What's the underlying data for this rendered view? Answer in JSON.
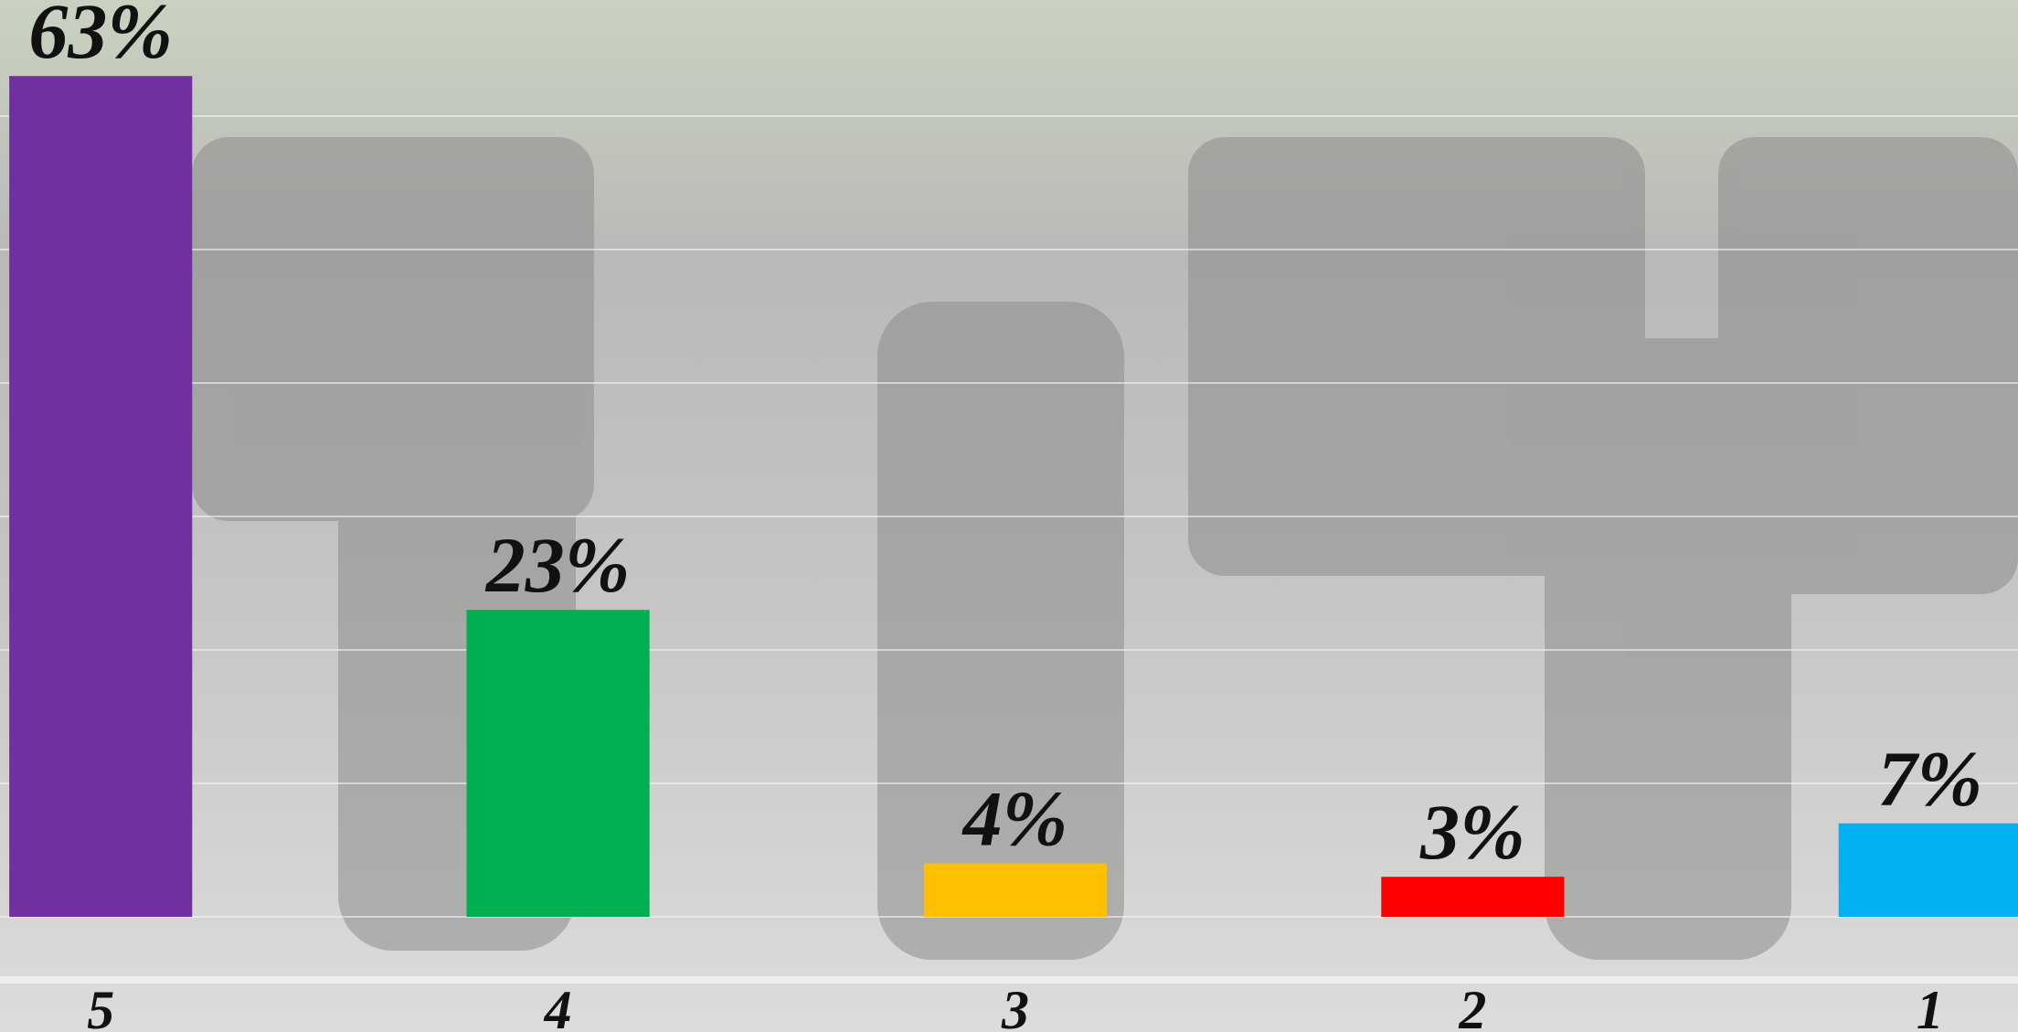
{
  "chart_data": {
    "type": "bar",
    "categories": [
      "5",
      "4",
      "3",
      "2",
      "1"
    ],
    "values": [
      63,
      23,
      4,
      3,
      7
    ],
    "value_labels": [
      "63%",
      "23%",
      "4%",
      "3%",
      "7%"
    ],
    "colors": [
      "#7030a0",
      "#00b050",
      "#ffc000",
      "#ff0000",
      "#00b0f0"
    ],
    "ylim": [
      0,
      70
    ],
    "yticks": [
      0,
      10,
      20,
      30,
      40,
      50,
      60
    ],
    "grid": true
  }
}
